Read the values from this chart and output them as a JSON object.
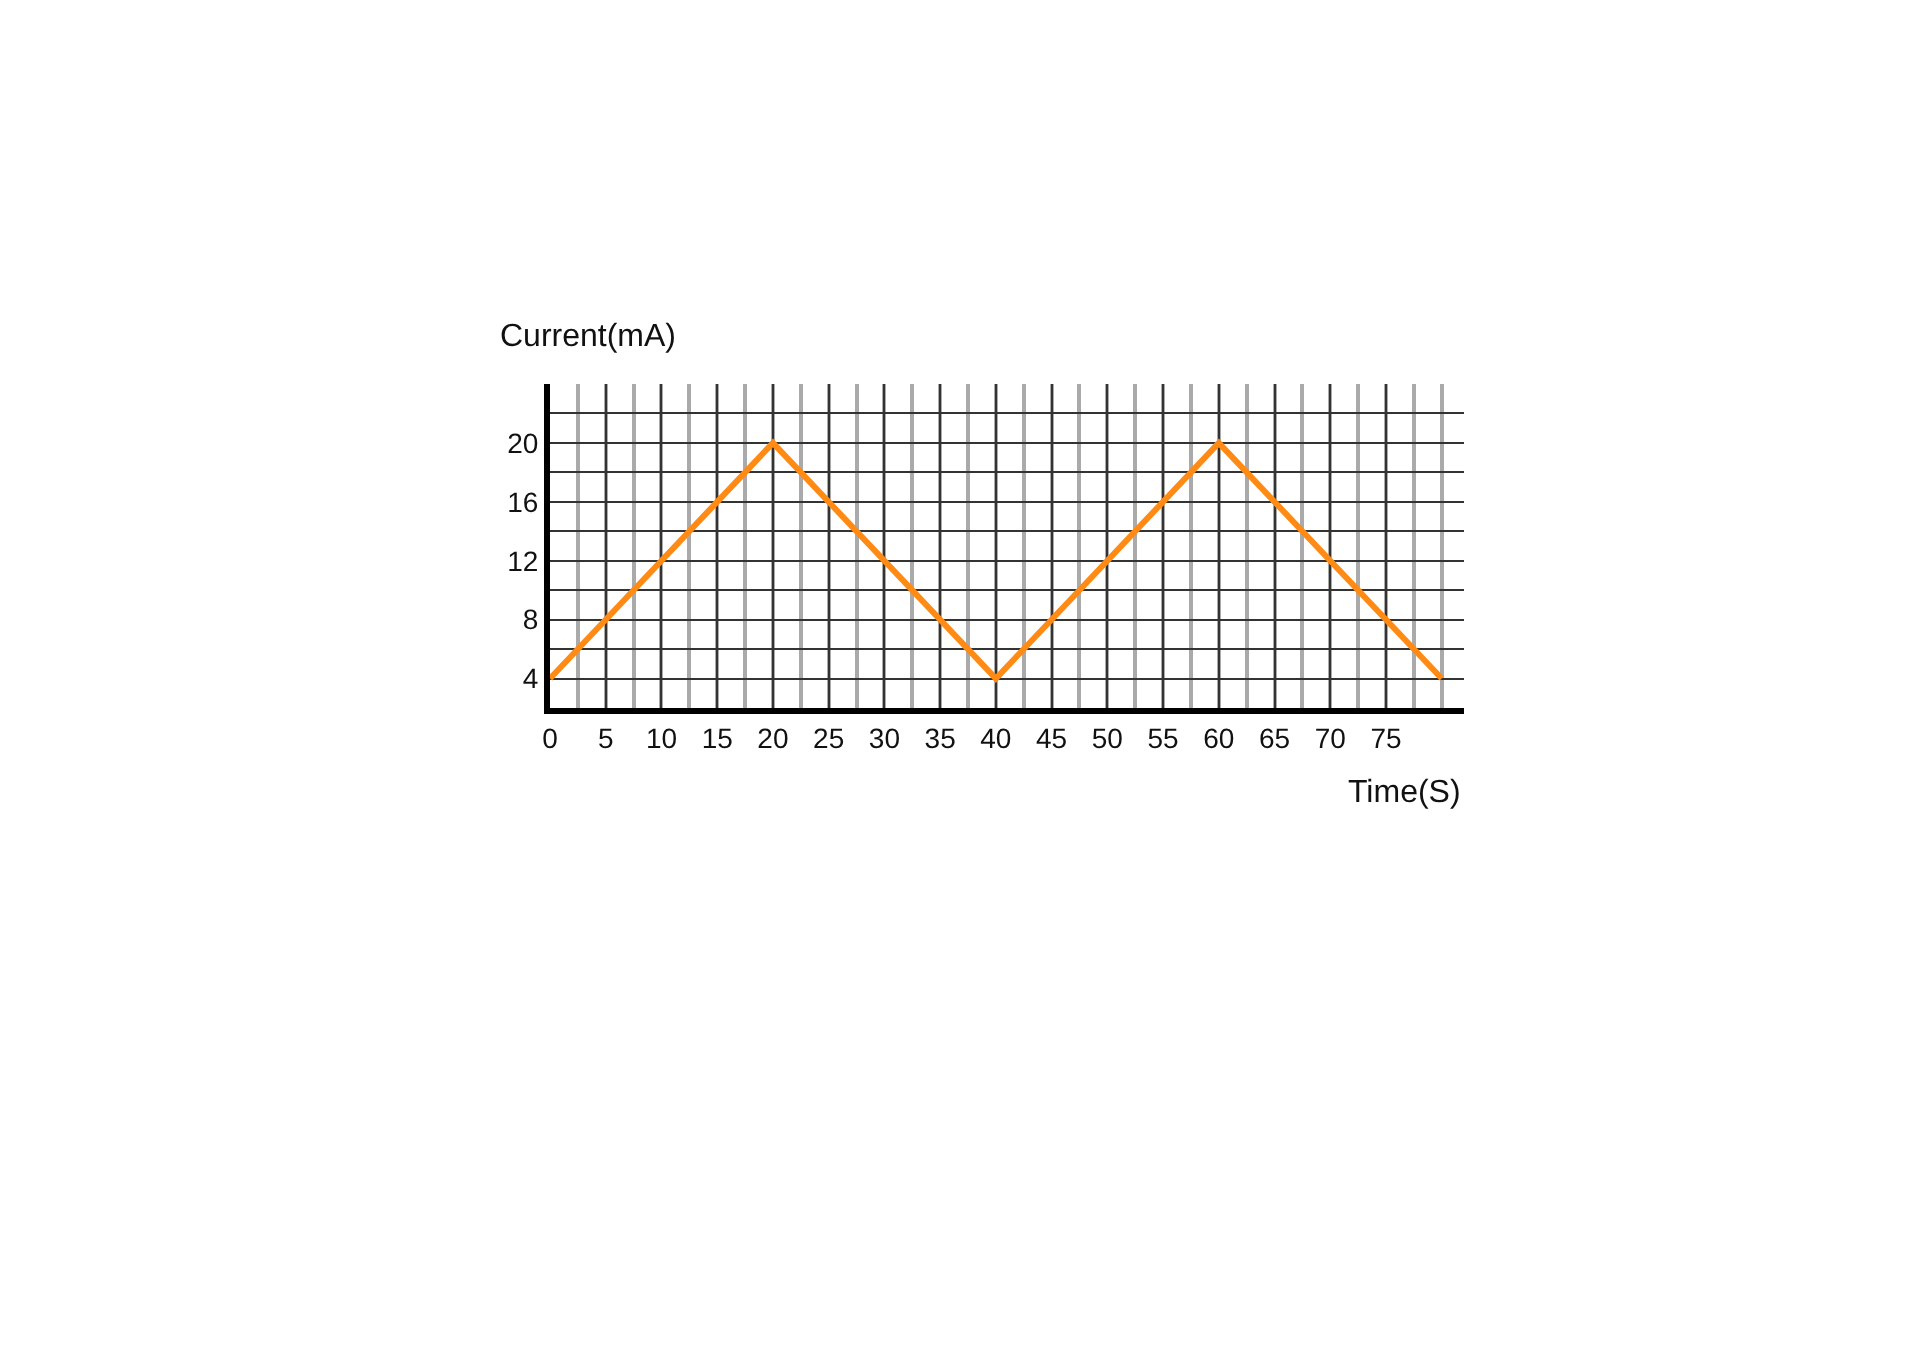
{
  "chart_data": {
    "type": "line",
    "xlabel": "Time(S)",
    "ylabel": "Current(mA)",
    "x": [
      0,
      20,
      40,
      60,
      80
    ],
    "series": [
      {
        "color": "#ff8a14",
        "values": [
          4,
          20,
          4,
          20,
          4
        ]
      }
    ],
    "xlim": [
      0,
      82
    ],
    "xticks": [
      0,
      5,
      10,
      15,
      20,
      25,
      30,
      35,
      40,
      45,
      50,
      55,
      60,
      65,
      70,
      75
    ],
    "ylim": [
      2,
      24
    ],
    "yticks": [
      4,
      8,
      12,
      16,
      20
    ],
    "grid": true,
    "marker": "none",
    "line_style": "solid"
  }
}
